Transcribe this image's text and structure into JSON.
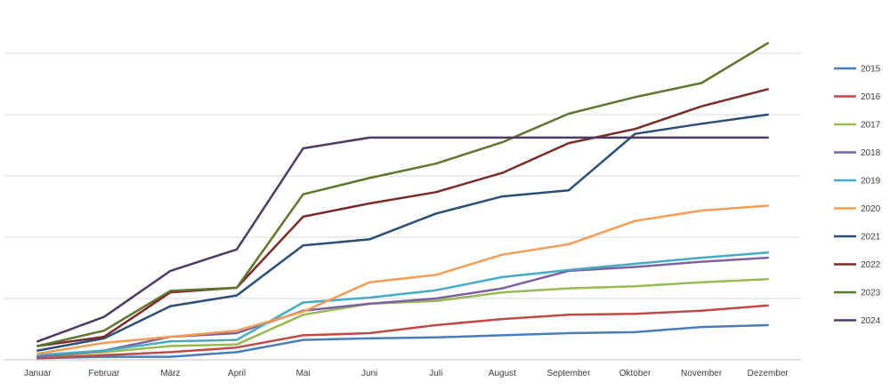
{
  "chart_data": {
    "type": "line",
    "title": "",
    "xlabel": "",
    "ylabel": "",
    "categories": [
      "Januar",
      "Februar",
      "März",
      "April",
      "Mai",
      "Juni",
      "Juli",
      "August",
      "September",
      "Oktober",
      "November",
      "Dezember"
    ],
    "ylim": [
      0,
      100
    ],
    "grid": "horizontal",
    "y_tick_labels_shown": false,
    "legend_position": "right",
    "series": [
      {
        "name": "2015",
        "color": "#4a7ebb",
        "values": [
          0.5,
          1,
          1,
          2.5,
          6.5,
          7,
          7.3,
          8,
          8.7,
          9,
          10.7,
          11.3
        ]
      },
      {
        "name": "2016",
        "color": "#be4b48",
        "values": [
          0.5,
          1.5,
          2.5,
          4,
          8,
          8.7,
          11.3,
          13.3,
          14.7,
          15,
          16,
          17.7
        ]
      },
      {
        "name": "2017",
        "color": "#98b954",
        "values": [
          1,
          2.5,
          4.5,
          5,
          14.7,
          18.3,
          19.2,
          22,
          23.3,
          24,
          25.3,
          26.3
        ]
      },
      {
        "name": "2018",
        "color": "#7d60a0",
        "values": [
          1,
          3,
          7.5,
          8.7,
          16,
          18.3,
          20,
          23.3,
          29,
          30.3,
          32,
          33.3
        ]
      },
      {
        "name": "2019",
        "color": "#46aac5",
        "values": [
          1.5,
          3,
          6,
          6.5,
          18.7,
          20.3,
          22.7,
          27,
          29.3,
          31.3,
          33.3,
          35
        ]
      },
      {
        "name": "2020",
        "color": "#f59d56",
        "values": [
          2,
          5.5,
          7.5,
          9.5,
          15.7,
          25.3,
          27.7,
          34.3,
          37.7,
          45.3,
          48.7,
          50.3
        ]
      },
      {
        "name": "2021",
        "color": "#2c4d75",
        "values": [
          3,
          7,
          17.5,
          21,
          37.3,
          39.3,
          47.7,
          53.3,
          55.3,
          73.7,
          77,
          80
        ]
      },
      {
        "name": "2022",
        "color": "#772c2a",
        "values": [
          4.5,
          7.5,
          22,
          23.5,
          46.7,
          51,
          54.7,
          61,
          70.7,
          75.3,
          82.7,
          88.3
        ]
      },
      {
        "name": "2023",
        "color": "#5f7530",
        "values": [
          4.5,
          9.5,
          22.5,
          23.5,
          54,
          59.3,
          64,
          71,
          80.3,
          85.7,
          90.3,
          103.3
        ]
      },
      {
        "name": "2024",
        "color": "#4d3b62",
        "values": [
          6,
          14,
          29,
          36,
          69,
          72.5,
          72.5,
          72.5,
          72.5,
          72.5,
          72.5,
          72.5
        ]
      }
    ]
  }
}
